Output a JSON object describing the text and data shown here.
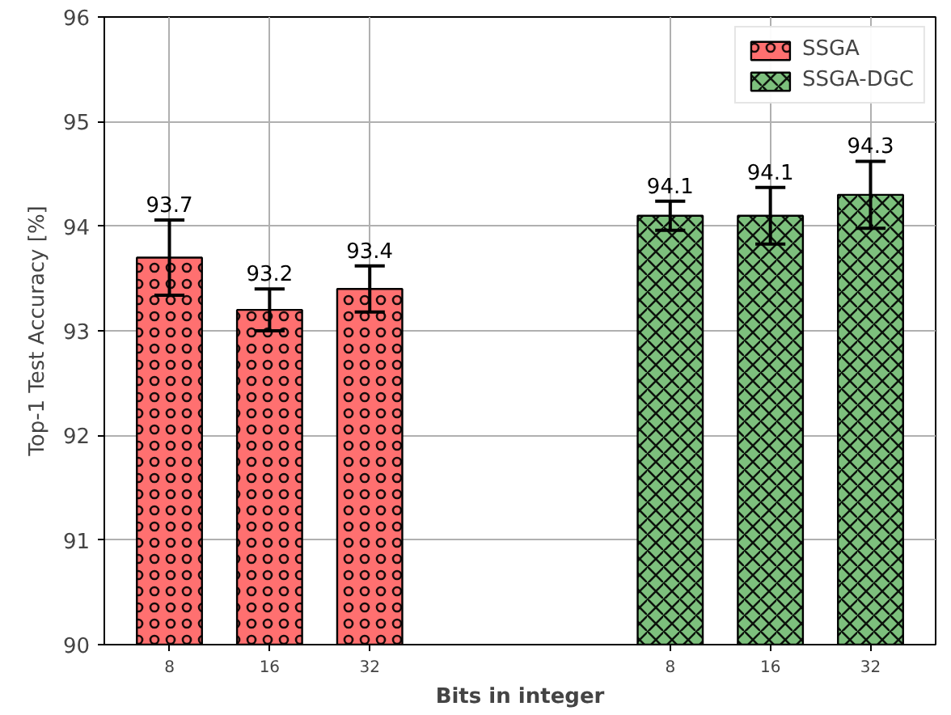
{
  "chart_data": {
    "type": "bar",
    "xlabel": "Bits in integer",
    "ylabel": "Top-1 Test Accuracy [%]",
    "categories": [
      "8",
      "16",
      "32",
      null,
      null,
      "8",
      "16",
      "32"
    ],
    "series": [
      {
        "name": "SSGA",
        "color": "#ff7070",
        "values": [
          93.7,
          93.2,
          93.4,
          null,
          null,
          null,
          null,
          null
        ],
        "errors": [
          0.36,
          0.2,
          0.22,
          null,
          null,
          null,
          null,
          null
        ]
      },
      {
        "name": "SSGA-DGC",
        "color": "#7dc07d",
        "values": [
          null,
          null,
          null,
          null,
          null,
          94.1,
          94.1,
          94.3
        ],
        "errors": [
          null,
          null,
          null,
          null,
          null,
          0.14,
          0.27,
          0.32
        ]
      }
    ],
    "ylim": [
      90,
      96
    ],
    "yticks": [
      90,
      91,
      92,
      93,
      94,
      95,
      96
    ],
    "data_labels": true,
    "grid": true,
    "legend": "top right"
  }
}
